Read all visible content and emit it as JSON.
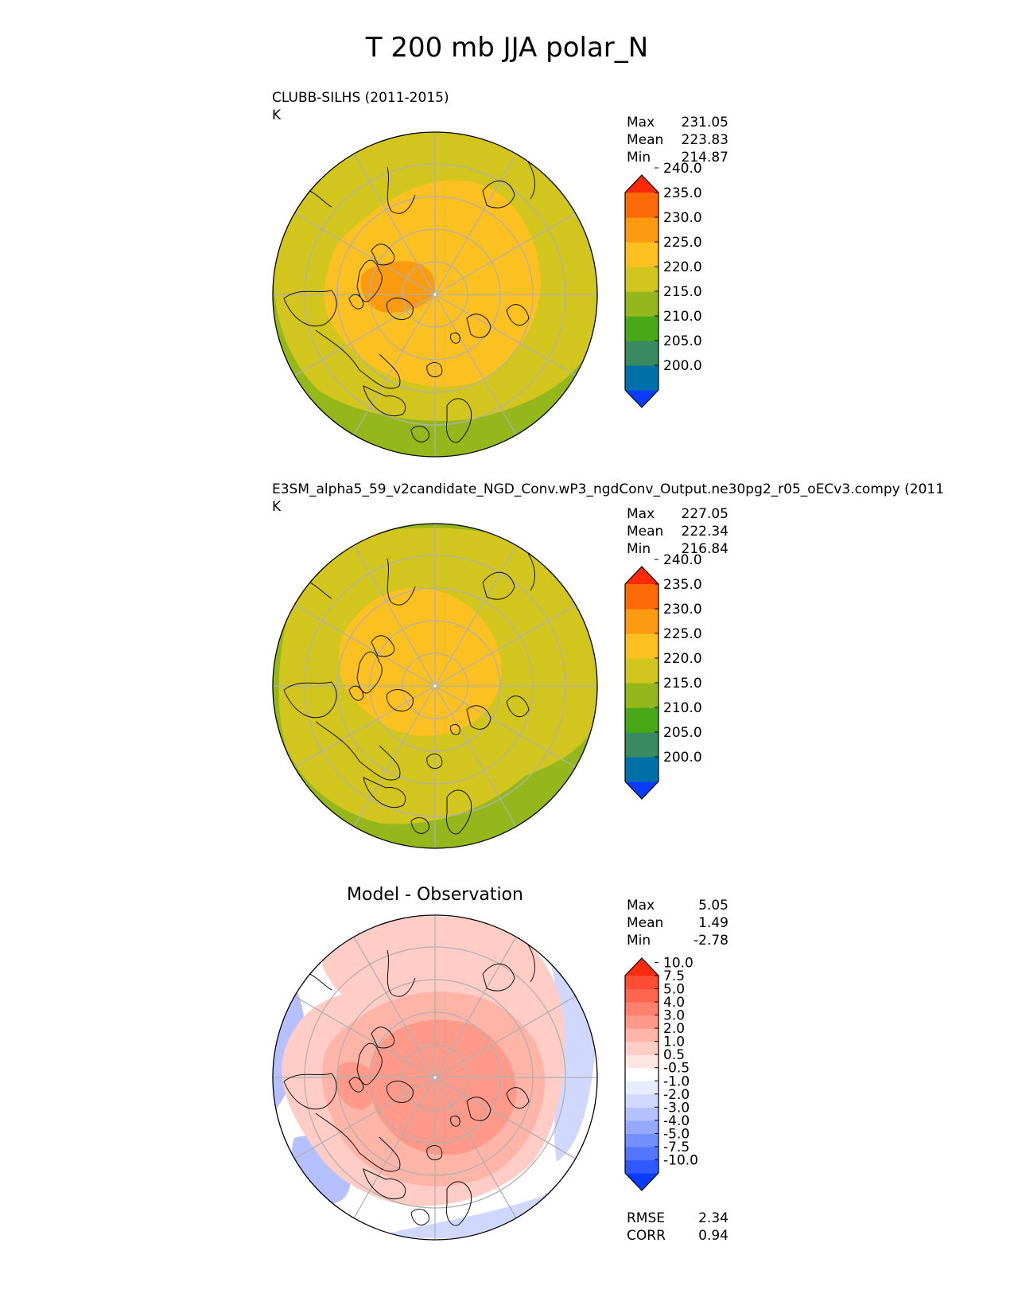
{
  "title": "T 200 mb JJA polar_N",
  "panels": [
    {
      "label": "CLUBB-SILHS (2011-2015)",
      "units": "K",
      "stats": [
        {
          "name": "Max",
          "value": "231.05"
        },
        {
          "name": "Mean",
          "value": "223.83"
        },
        {
          "name": "Min",
          "value": "214.87"
        }
      ]
    },
    {
      "label": "E3SM_alpha5_59_v2candidate_NGD_Conv.wP3_ngdConv_Output.ne30pg2_r05_oECv3.compy (2011",
      "units": "K",
      "stats": [
        {
          "name": "Max",
          "value": "227.05"
        },
        {
          "name": "Mean",
          "value": "222.34"
        },
        {
          "name": "Min",
          "value": "216.84"
        }
      ]
    },
    {
      "label": "Model - Observation",
      "stats": [
        {
          "name": "Max",
          "value": "5.05"
        },
        {
          "name": "Mean",
          "value": "1.49"
        },
        {
          "name": "Min",
          "value": "-2.78"
        }
      ],
      "metrics": [
        {
          "name": "RMSE",
          "value": "2.34"
        },
        {
          "name": "CORR",
          "value": "0.94"
        }
      ]
    }
  ],
  "colorbar_abs": {
    "colors": [
      "#0a3cff",
      "#0070a8",
      "#3a8a60",
      "#48a818",
      "#94b81c",
      "#d2c61e",
      "#fcc020",
      "#fc9a10",
      "#fc6a08",
      "#fc2a08"
    ],
    "ticks": [
      "200.0",
      "205.0",
      "210.0",
      "215.0",
      "220.0",
      "225.0",
      "230.0",
      "235.0",
      "240.0"
    ]
  },
  "colorbar_diff": {
    "colors": [
      "#0a3cff",
      "#2f58ff",
      "#5276ff",
      "#7490ff",
      "#96a8ff",
      "#b4c0ff",
      "#d0d8ff",
      "#e8ecff",
      "#ffffff",
      "#ffe6e2",
      "#ffcdc5",
      "#ffb4a8",
      "#ff9a8a",
      "#ff806c",
      "#ff6650",
      "#ff4c34",
      "#ff2a0e"
    ],
    "ticks": [
      "-10.0",
      "-7.5",
      "-5.0",
      "-4.0",
      "-3.0",
      "-2.0",
      "-1.0",
      "-0.5",
      "0.5",
      "1.0",
      "2.0",
      "3.0",
      "4.0",
      "5.0",
      "7.5",
      "10.0"
    ]
  }
}
